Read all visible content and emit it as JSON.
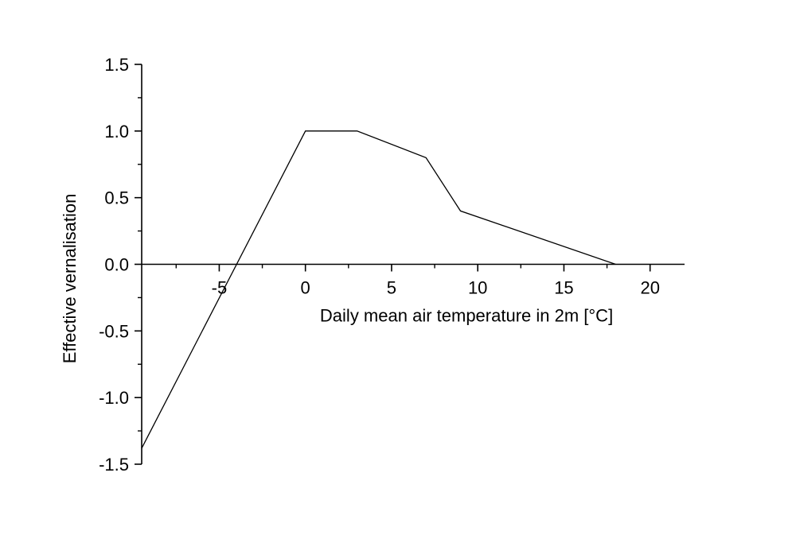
{
  "chart_data": {
    "type": "line",
    "title": "",
    "xlabel": "Daily mean air temperature in 2m [°C]",
    "ylabel": "Effective vernalisation",
    "xlim": [
      -9.5,
      22
    ],
    "ylim": [
      -1.5,
      1.5
    ],
    "x_ticks": [
      -5,
      0,
      5,
      10,
      15,
      20
    ],
    "x_tick_labels": [
      "-5",
      "0",
      "5",
      "10",
      "15",
      "20"
    ],
    "y_ticks": [
      -1.5,
      -1.0,
      -0.5,
      0.0,
      0.5,
      1.0,
      1.5
    ],
    "y_tick_labels": [
      "-1.5",
      "-1.0",
      "-0.5",
      "0.0",
      "0.5",
      "1.0",
      "1.5"
    ],
    "grid": false,
    "legend": "none",
    "series": [
      {
        "x": [
          -9.5,
          0,
          3,
          7,
          9,
          18
        ],
        "y": [
          -1.38,
          1.0,
          1.0,
          0.8,
          0.4,
          0.0
        ]
      }
    ],
    "colors": {
      "line": "#000000",
      "axis": "#000000"
    }
  }
}
